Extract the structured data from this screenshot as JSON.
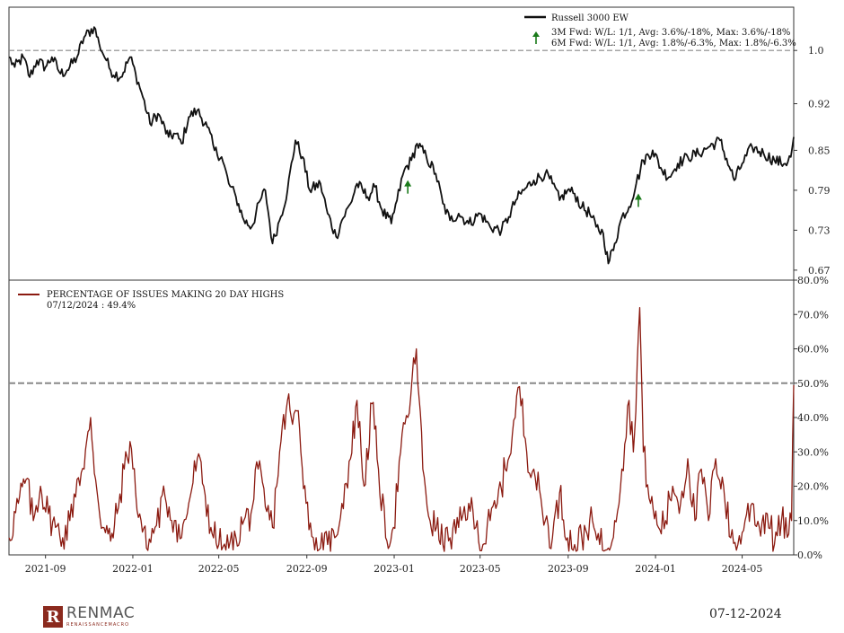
{
  "footer": {
    "date": "07-12-2024"
  },
  "logo": {
    "mark": "R",
    "name": "RENMAC",
    "sub": "RENAISSANCEMACRO"
  },
  "colors": {
    "price": "#111111",
    "breadth": "#8b1a10",
    "arrow": "#1a7a1a",
    "grid": "#888888"
  },
  "chart_data": [
    {
      "type": "line",
      "series": [
        {
          "name": "Russell 3000 EW"
        }
      ],
      "legend": {
        "series": "Russell 3000 EW",
        "line1": "3M Fwd: W/L: 1/1, Avg: 3.6%/-18%, Max: 3.6%/-18%",
        "line2": "6M Fwd: W/L: 1/1, Avg: 1.8%/-6.3%, Max: 1.8%/-6.3%",
        "placement": "top-right"
      },
      "y_ticks": [
        "1.0",
        "0.92",
        "0.85",
        "0.79",
        "0.73",
        "0.67"
      ],
      "y_tick_values": [
        1.0,
        0.92,
        0.85,
        0.79,
        0.73,
        0.67
      ],
      "ylim": [
        0.655,
        1.065
      ],
      "reference_line": 1.0,
      "signal_markers": [
        "2023-01-20",
        "2023-12-08"
      ],
      "key_points": [
        [
          "2021-07-12",
          0.99
        ],
        [
          "2021-07-20",
          0.975
        ],
        [
          "2021-08-01",
          0.99
        ],
        [
          "2021-08-10",
          0.96
        ],
        [
          "2021-08-20",
          0.985
        ],
        [
          "2021-09-01",
          0.975
        ],
        [
          "2021-09-10",
          0.99
        ],
        [
          "2021-09-22",
          0.965
        ],
        [
          "2021-10-01",
          0.97
        ],
        [
          "2021-10-15",
          0.99
        ],
        [
          "2021-10-25",
          1.02
        ],
        [
          "2021-11-08",
          1.035
        ],
        [
          "2021-11-15",
          1.01
        ],
        [
          "2021-11-25",
          0.985
        ],
        [
          "2021-12-01",
          0.97
        ],
        [
          "2021-12-15",
          0.96
        ],
        [
          "2021-12-28",
          0.99
        ],
        [
          "2022-01-05",
          0.965
        ],
        [
          "2022-01-15",
          0.93
        ],
        [
          "2022-01-25",
          0.89
        ],
        [
          "2022-02-05",
          0.905
        ],
        [
          "2022-02-20",
          0.87
        ],
        [
          "2022-03-01",
          0.875
        ],
        [
          "2022-03-10",
          0.86
        ],
        [
          "2022-03-20",
          0.9
        ],
        [
          "2022-04-01",
          0.91
        ],
        [
          "2022-04-15",
          0.885
        ],
        [
          "2022-04-25",
          0.85
        ],
        [
          "2022-05-05",
          0.84
        ],
        [
          "2022-05-15",
          0.8
        ],
        [
          "2022-05-25",
          0.78
        ],
        [
          "2022-06-05",
          0.745
        ],
        [
          "2022-06-16",
          0.735
        ],
        [
          "2022-06-28",
          0.775
        ],
        [
          "2022-07-05",
          0.79
        ],
        [
          "2022-07-15",
          0.71
        ],
        [
          "2022-07-25",
          0.745
        ],
        [
          "2022-08-05",
          0.79
        ],
        [
          "2022-08-16",
          0.865
        ],
        [
          "2022-08-26",
          0.84
        ],
        [
          "2022-09-05",
          0.79
        ],
        [
          "2022-09-20",
          0.8
        ],
        [
          "2022-09-30",
          0.755
        ],
        [
          "2022-10-12",
          0.72
        ],
        [
          "2022-10-20",
          0.745
        ],
        [
          "2022-11-01",
          0.77
        ],
        [
          "2022-11-10",
          0.8
        ],
        [
          "2022-11-25",
          0.78
        ],
        [
          "2022-12-05",
          0.795
        ],
        [
          "2022-12-15",
          0.76
        ],
        [
          "2022-12-28",
          0.74
        ],
        [
          "2023-01-05",
          0.775
        ],
        [
          "2023-01-15",
          0.82
        ],
        [
          "2023-01-25",
          0.835
        ],
        [
          "2023-02-02",
          0.86
        ],
        [
          "2023-02-15",
          0.84
        ],
        [
          "2023-02-28",
          0.815
        ],
        [
          "2023-03-10",
          0.77
        ],
        [
          "2023-03-20",
          0.745
        ],
        [
          "2023-04-01",
          0.755
        ],
        [
          "2023-04-15",
          0.74
        ],
        [
          "2023-05-01",
          0.755
        ],
        [
          "2023-05-15",
          0.735
        ],
        [
          "2023-05-31",
          0.73
        ],
        [
          "2023-06-10",
          0.75
        ],
        [
          "2023-06-20",
          0.775
        ],
        [
          "2023-07-01",
          0.79
        ],
        [
          "2023-07-15",
          0.805
        ],
        [
          "2023-07-31",
          0.815
        ],
        [
          "2023-08-10",
          0.8
        ],
        [
          "2023-08-20",
          0.775
        ],
        [
          "2023-08-31",
          0.79
        ],
        [
          "2023-09-10",
          0.785
        ],
        [
          "2023-09-20",
          0.765
        ],
        [
          "2023-10-01",
          0.755
        ],
        [
          "2023-10-10",
          0.735
        ],
        [
          "2023-10-20",
          0.725
        ],
        [
          "2023-10-27",
          0.68
        ],
        [
          "2023-11-05",
          0.71
        ],
        [
          "2023-11-15",
          0.75
        ],
        [
          "2023-11-25",
          0.765
        ],
        [
          "2023-12-05",
          0.8
        ],
        [
          "2023-12-15",
          0.835
        ],
        [
          "2023-12-28",
          0.85
        ],
        [
          "2024-01-10",
          0.82
        ],
        [
          "2024-01-20",
          0.81
        ],
        [
          "2024-02-01",
          0.83
        ],
        [
          "2024-02-15",
          0.84
        ],
        [
          "2024-03-01",
          0.845
        ],
        [
          "2024-03-15",
          0.855
        ],
        [
          "2024-03-31",
          0.865
        ],
        [
          "2024-04-15",
          0.82
        ],
        [
          "2024-04-20",
          0.805
        ],
        [
          "2024-05-01",
          0.83
        ],
        [
          "2024-05-15",
          0.855
        ],
        [
          "2024-05-31",
          0.845
        ],
        [
          "2024-06-15",
          0.835
        ],
        [
          "2024-06-30",
          0.83
        ],
        [
          "2024-07-08",
          0.84
        ],
        [
          "2024-07-12",
          0.87
        ]
      ]
    },
    {
      "type": "line",
      "series": [
        {
          "name": "PERCENTAGE OF ISSUES MAKING 20 DAY HIGHS"
        }
      ],
      "legend": {
        "series": "PERCENTAGE OF ISSUES MAKING 20 DAY HIGHS",
        "latest": "07/12/2024 : 49.4%",
        "placement": "top-left"
      },
      "y_ticks": [
        "80.0%",
        "70.0%",
        "60.0%",
        "50.0%",
        "40.0%",
        "30.0%",
        "20.0%",
        "10.0%",
        "0.0%"
      ],
      "y_tick_values": [
        80,
        70,
        60,
        50,
        40,
        30,
        20,
        10,
        0
      ],
      "ylim": [
        0,
        80
      ],
      "reference_line": 50,
      "x_ticks": [
        "2021-09",
        "2022-01",
        "2022-05",
        "2022-09",
        "2023-01",
        "2023-05",
        "2023-09",
        "2024-01",
        "2024-05"
      ],
      "xlim": [
        "2021-07-12",
        "2024-07-12"
      ],
      "key_points": [
        [
          "2021-07-12",
          5
        ],
        [
          "2021-07-25",
          15
        ],
        [
          "2021-08-05",
          22
        ],
        [
          "2021-08-15",
          10
        ],
        [
          "2021-08-25",
          20
        ],
        [
          "2021-09-05",
          12
        ],
        [
          "2021-09-15",
          8
        ],
        [
          "2021-09-25",
          5
        ],
        [
          "2021-10-05",
          10
        ],
        [
          "2021-10-15",
          22
        ],
        [
          "2021-10-25",
          25
        ],
        [
          "2021-11-03",
          40
        ],
        [
          "2021-11-10",
          22
        ],
        [
          "2021-11-20",
          8
        ],
        [
          "2021-12-01",
          4
        ],
        [
          "2021-12-10",
          12
        ],
        [
          "2021-12-20",
          25
        ],
        [
          "2021-12-28",
          33
        ],
        [
          "2022-01-05",
          18
        ],
        [
          "2022-01-20",
          2
        ],
        [
          "2022-02-01",
          8
        ],
        [
          "2022-02-15",
          17
        ],
        [
          "2022-02-28",
          10
        ],
        [
          "2022-03-10",
          5
        ],
        [
          "2022-03-20",
          15
        ],
        [
          "2022-04-01",
          28
        ],
        [
          "2022-04-10",
          20
        ],
        [
          "2022-04-20",
          8
        ],
        [
          "2022-05-01",
          3
        ],
        [
          "2022-05-15",
          2
        ],
        [
          "2022-05-25",
          5
        ],
        [
          "2022-06-05",
          10
        ],
        [
          "2022-06-15",
          12
        ],
        [
          "2022-06-25",
          25
        ],
        [
          "2022-07-05",
          14
        ],
        [
          "2022-07-15",
          8
        ],
        [
          "2022-07-25",
          30
        ],
        [
          "2022-08-05",
          45
        ],
        [
          "2022-08-12",
          38
        ],
        [
          "2022-08-20",
          42
        ],
        [
          "2022-08-31",
          15
        ],
        [
          "2022-09-10",
          5
        ],
        [
          "2022-09-20",
          2
        ],
        [
          "2022-09-30",
          3
        ],
        [
          "2022-10-10",
          5
        ],
        [
          "2022-10-20",
          15
        ],
        [
          "2022-11-01",
          28
        ],
        [
          "2022-11-10",
          45
        ],
        [
          "2022-11-20",
          20
        ],
        [
          "2022-12-01",
          44
        ],
        [
          "2022-12-10",
          25
        ],
        [
          "2022-12-20",
          5
        ],
        [
          "2022-12-31",
          8
        ],
        [
          "2023-01-10",
          30
        ],
        [
          "2023-01-20",
          40
        ],
        [
          "2023-02-01",
          60
        ],
        [
          "2023-02-10",
          25
        ],
        [
          "2023-02-20",
          10
        ],
        [
          "2023-03-01",
          8
        ],
        [
          "2023-03-10",
          3
        ],
        [
          "2023-03-20",
          5
        ],
        [
          "2023-04-01",
          8
        ],
        [
          "2023-04-15",
          15
        ],
        [
          "2023-04-25",
          8
        ],
        [
          "2023-05-05",
          3
        ],
        [
          "2023-05-15",
          10
        ],
        [
          "2023-05-25",
          15
        ],
        [
          "2023-06-05",
          25
        ],
        [
          "2023-06-15",
          35
        ],
        [
          "2023-06-25",
          49
        ],
        [
          "2023-07-05",
          30
        ],
        [
          "2023-07-15",
          25
        ],
        [
          "2023-07-31",
          10
        ],
        [
          "2023-08-10",
          5
        ],
        [
          "2023-08-20",
          18
        ],
        [
          "2023-08-31",
          5
        ],
        [
          "2023-09-10",
          3
        ],
        [
          "2023-09-20",
          5
        ],
        [
          "2023-10-01",
          10
        ],
        [
          "2023-10-15",
          3
        ],
        [
          "2023-10-27",
          2
        ],
        [
          "2023-11-05",
          10
        ],
        [
          "2023-11-15",
          25
        ],
        [
          "2023-11-25",
          45
        ],
        [
          "2023-12-01",
          30
        ],
        [
          "2023-12-10",
          72
        ],
        [
          "2023-12-15",
          30
        ],
        [
          "2023-12-25",
          15
        ],
        [
          "2024-01-05",
          8
        ],
        [
          "2024-01-15",
          10
        ],
        [
          "2024-01-25",
          20
        ],
        [
          "2024-02-05",
          15
        ],
        [
          "2024-02-15",
          28
        ],
        [
          "2024-02-25",
          10
        ],
        [
          "2024-03-05",
          25
        ],
        [
          "2024-03-15",
          10
        ],
        [
          "2024-03-25",
          28
        ],
        [
          "2024-04-05",
          20
        ],
        [
          "2024-04-15",
          5
        ],
        [
          "2024-04-25",
          3
        ],
        [
          "2024-05-05",
          10
        ],
        [
          "2024-05-15",
          15
        ],
        [
          "2024-05-25",
          8
        ],
        [
          "2024-06-05",
          12
        ],
        [
          "2024-06-15",
          3
        ],
        [
          "2024-06-25",
          10
        ],
        [
          "2024-07-05",
          6
        ],
        [
          "2024-07-09",
          10
        ],
        [
          "2024-07-12",
          49.4
        ]
      ]
    }
  ]
}
